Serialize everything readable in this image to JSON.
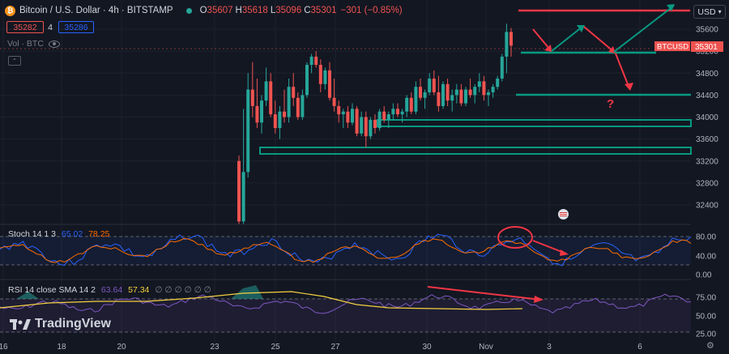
{
  "header": {
    "title": "Bitcoin / U.S. Dollar · 4h · BITSTAMP",
    "ohlc": [
      {
        "label": "O",
        "value": "35607"
      },
      {
        "label": "H",
        "value": "35618"
      },
      {
        "label": "L",
        "value": "35096"
      },
      {
        "label": "C",
        "value": "35301"
      }
    ],
    "change": "−301 (−0.85%)",
    "sell_price": "35282",
    "spread": "4",
    "buy_price": "35286",
    "volume_label": "Vol · BTC"
  },
  "currency_button": "USD",
  "price_scale": {
    "labels": [
      "35600",
      "35200",
      "34800",
      "34400",
      "34000",
      "33600",
      "33200",
      "32800",
      "32400"
    ],
    "symbol_tag": "BTCUSD",
    "last_price": "35301"
  },
  "stoch": {
    "label": "Stoch 14 1 3",
    "k": "65.02",
    "d": "78.25",
    "scale": [
      "80.00",
      "40.00",
      "0.00"
    ]
  },
  "rsi": {
    "label": "RSI 14 close SMA 14 2",
    "rsi": "63.64",
    "sma": "57.34",
    "placeholders": "∅ ∅ ∅ ∅ ∅ ∅",
    "scale": [
      "75.00",
      "50.00",
      "25.00"
    ]
  },
  "time_axis": [
    "16",
    "18",
    "20",
    "23",
    "25",
    "27",
    "30",
    "Nov",
    "3",
    "6"
  ],
  "annotation_text": "?",
  "branding": "TradingView",
  "colors": {
    "bg": "#131722",
    "up": "#26a69a",
    "down": "#ef5350",
    "annotation_red": "#f23645",
    "annotation_green": "#089981",
    "stoch_k": "#2962ff",
    "stoch_d": "#ff6d00",
    "rsi": "#7e57c2",
    "sma": "#f4d03f",
    "text": "#d1d4dc",
    "axis": "#b2b5be"
  },
  "chart_data": {
    "type": "candlestick",
    "ylim": [
      32000,
      35800
    ],
    "candles": [
      [
        33200,
        33300,
        32050,
        32100
      ],
      [
        32100,
        34150,
        32050,
        33000
      ],
      [
        33000,
        34800,
        32900,
        34500
      ],
      [
        34500,
        35000,
        34000,
        34200
      ],
      [
        34200,
        34700,
        33800,
        33900
      ],
      [
        33900,
        34400,
        33700,
        34300
      ],
      [
        34300,
        34900,
        34200,
        34650
      ],
      [
        34650,
        34800,
        34000,
        34050
      ],
      [
        34050,
        34300,
        33700,
        33800
      ],
      [
        33800,
        34200,
        33600,
        34100
      ],
      [
        34100,
        34500,
        33900,
        34000
      ],
      [
        34000,
        34700,
        33900,
        34550
      ],
      [
        34550,
        34800,
        34200,
        34350
      ],
      [
        34350,
        34450,
        33950,
        34000
      ],
      [
        34000,
        34500,
        33950,
        34400
      ],
      [
        34400,
        35000,
        34350,
        34950
      ],
      [
        34950,
        35150,
        34800,
        35100
      ],
      [
        35100,
        35200,
        34900,
        34950
      ],
      [
        34950,
        35050,
        34450,
        34600
      ],
      [
        34600,
        34900,
        34500,
        34850
      ],
      [
        34850,
        35000,
        34300,
        34350
      ],
      [
        34350,
        34700,
        34100,
        34200
      ],
      [
        34200,
        34300,
        33900,
        34050
      ],
      [
        34050,
        34150,
        33800,
        34100
      ],
      [
        34100,
        34200,
        33800,
        33900
      ],
      [
        33900,
        34250,
        33850,
        34150
      ],
      [
        34150,
        34200,
        33650,
        33700
      ],
      [
        33700,
        34100,
        33650,
        34000
      ],
      [
        34000,
        34100,
        33450,
        33650
      ],
      [
        33650,
        34000,
        33600,
        33950
      ],
      [
        33950,
        34050,
        33700,
        33800
      ],
      [
        33800,
        34150,
        33750,
        34100
      ],
      [
        34100,
        34200,
        33900,
        33950
      ],
      [
        33950,
        34100,
        33800,
        34050
      ],
      [
        34050,
        34250,
        33950,
        34150
      ],
      [
        34150,
        34250,
        34000,
        34050
      ],
      [
        34050,
        34150,
        33900,
        34100
      ],
      [
        34100,
        34400,
        34000,
        34350
      ],
      [
        34350,
        34450,
        34050,
        34100
      ],
      [
        34100,
        34650,
        34050,
        34550
      ],
      [
        34550,
        34700,
        34300,
        34350
      ],
      [
        34350,
        34500,
        34150,
        34450
      ],
      [
        34450,
        34800,
        34400,
        34700
      ],
      [
        34700,
        34850,
        34400,
        34450
      ],
      [
        34450,
        34750,
        34100,
        34200
      ],
      [
        34200,
        34650,
        34150,
        34600
      ],
      [
        34600,
        34700,
        34200,
        34300
      ],
      [
        34300,
        34500,
        34100,
        34400
      ],
      [
        34400,
        34600,
        34250,
        34500
      ],
      [
        34500,
        34600,
        34200,
        34250
      ],
      [
        34250,
        34550,
        34200,
        34500
      ],
      [
        34500,
        34700,
        34350,
        34400
      ],
      [
        34400,
        34600,
        34250,
        34550
      ],
      [
        34550,
        34800,
        34450,
        34650
      ],
      [
        34650,
        34750,
        34300,
        34400
      ],
      [
        34400,
        34500,
        34200,
        34450
      ],
      [
        34450,
        34600,
        34350,
        34550
      ],
      [
        34550,
        34750,
        34500,
        34700
      ],
      [
        34700,
        35150,
        34650,
        35100
      ],
      [
        35100,
        35700,
        34800,
        35550
      ],
      [
        35550,
        35620,
        35100,
        35300
      ]
    ]
  }
}
